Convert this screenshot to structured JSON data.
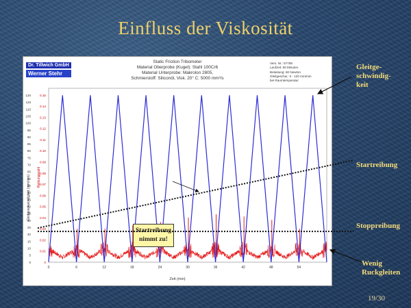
{
  "slide": {
    "title": "Einfluss der Viskosität",
    "page_number": "19/30"
  },
  "chart": {
    "logo_line1": "Dr. Tillwich GmbH",
    "logo_line2": "Werner Stehr",
    "header": [
      "Static Friction Tribometer",
      "Material Oberprobe (Kugel): Stahl 100Cr6",
      "Material Unterprobe: Makrolon 2805,",
      "Schmierstoff: Siliconöl, Visk. 20° C: 5000 mm²/s"
    ],
    "params": [
      "Vers. Nr.: 57789",
      "Laufzeit: 60 Minuten",
      "Belastung: 60 Newton",
      "Gleitgeschw.: 0 - 120 mm/min",
      "bei Raumtemperatur"
    ],
    "callout_line1": "Startreibung",
    "callout_line2": "nimmt zu!"
  },
  "annotations": {
    "gleitgeschwindigkeit": [
      "Gleitge-",
      "schwindig-",
      "keit"
    ],
    "startreibung": "Startreibung",
    "stoppreibung": "Stoppreibung",
    "wenig_ruckgleiten": [
      "Wenig",
      "Ruckgleiten"
    ]
  },
  "chart_data": {
    "type": "line",
    "xlabel": "Zeit (min)",
    "ylabel_left": "Gleitgeschwindigkeit (mm/min)",
    "ylabel_right": "Reibungszahl",
    "x_ticks": [
      0,
      6,
      12,
      18,
      24,
      30,
      36,
      42,
      48,
      54
    ],
    "x_range": [
      0,
      60
    ],
    "y_left_ticks": [
      0,
      5,
      10,
      15,
      20,
      25,
      30,
      35,
      40,
      45,
      50,
      55,
      60,
      65,
      70,
      75,
      80,
      85,
      90,
      95,
      100,
      105,
      110,
      115,
      120
    ],
    "y_left_range": [
      0,
      125
    ],
    "y_right_ticks": [
      "0",
      "0.01",
      "0.02",
      "0.03",
      "0.04",
      "0.05",
      "0.06",
      "0.07",
      "0.08",
      "0.09",
      "0.10",
      "0.11",
      "0.12",
      "0.13",
      "0.14",
      "0.15"
    ],
    "y_right_range": [
      0,
      0.15625
    ],
    "grid": true,
    "series": [
      {
        "name": "Gleitgeschwindigkeit",
        "color": "#2b2bd6",
        "x": [
          0,
          3,
          6,
          9,
          12,
          15,
          18,
          21,
          24,
          27,
          30,
          33,
          36,
          39,
          42,
          45,
          48,
          51,
          54,
          57,
          60
        ],
        "values": [
          0,
          120,
          0,
          120,
          0,
          120,
          0,
          120,
          0,
          120,
          0,
          120,
          0,
          120,
          0,
          120,
          0,
          120,
          0,
          120,
          0
        ]
      },
      {
        "name": "Reibungszahl",
        "color": "#e41b1b",
        "spike_x": [
          6,
          12,
          18,
          24,
          30,
          36,
          42,
          48,
          54
        ],
        "spike_values": [
          0.03,
          0.03,
          0.033,
          0.036,
          0.04,
          0.043,
          0.041,
          0.038,
          0.03
        ],
        "baseline": 0.012
      }
    ],
    "trend_lines": [
      {
        "name": "Startreibung",
        "from": [
          0,
          0.03
        ],
        "to": [
          60,
          0.091
        ]
      },
      {
        "name": "Stoppreibung",
        "from": [
          0,
          0.027
        ],
        "to": [
          60,
          0.027
        ]
      }
    ]
  }
}
